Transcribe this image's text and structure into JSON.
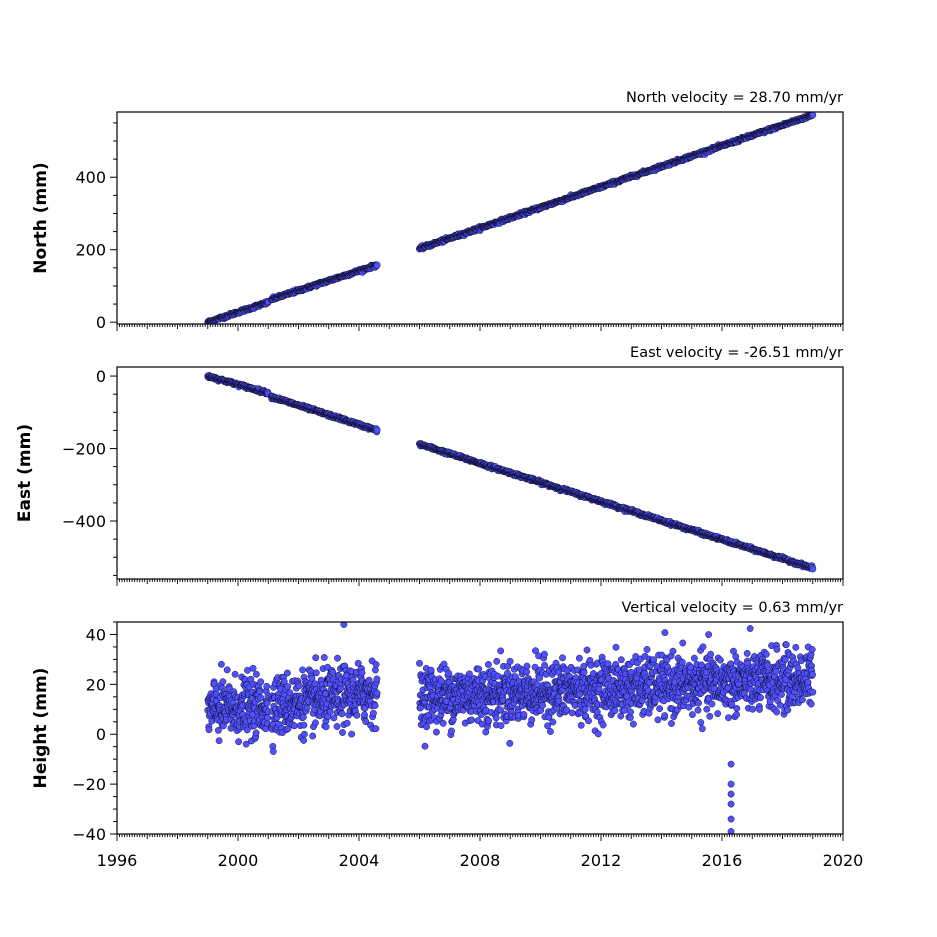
{
  "chart_data": [
    {
      "type": "scatter",
      "title": "North velocity = 28.70 mm/yr",
      "ylabel": "North (mm)",
      "xlim": [
        1996,
        2020
      ],
      "ylim": [
        -5,
        580
      ],
      "yticks": [
        0,
        200,
        400
      ],
      "grid": false,
      "segments": [
        {
          "x0": 1999.0,
          "x1": 2001.0,
          "y0": 0,
          "y1": 55
        },
        {
          "x0": 2001.1,
          "x1": 2004.6,
          "y0": 63,
          "y1": 158
        },
        {
          "x0": 2006.0,
          "x1": 2019.0,
          "y0": 203,
          "y1": 572
        }
      ],
      "noise": 2
    },
    {
      "type": "scatter",
      "title": "East velocity = -26.51 mm/yr",
      "ylabel": "East (mm)",
      "xlim": [
        1996,
        2020
      ],
      "ylim": [
        -560,
        25
      ],
      "yticks": [
        0,
        -200,
        -400
      ],
      "grid": false,
      "segments": [
        {
          "x0": 1999.0,
          "x1": 2001.0,
          "y0": 0,
          "y1": -47
        },
        {
          "x0": 2001.1,
          "x1": 2004.6,
          "y0": -57,
          "y1": -150
        },
        {
          "x0": 2006.0,
          "x1": 2019.0,
          "y0": -188,
          "y1": -530
        }
      ],
      "noise": 2
    },
    {
      "type": "scatter",
      "title": "Vertical velocity = 0.63 mm/yr",
      "ylabel": "Height (mm)",
      "xlabel": "",
      "xlim": [
        1996,
        2020
      ],
      "ylim": [
        -40,
        45
      ],
      "yticks": [
        -40,
        -20,
        0,
        20,
        40
      ],
      "xticks": [
        1996,
        2000,
        2004,
        2008,
        2012,
        2016,
        2020
      ],
      "grid": false,
      "segments": [
        {
          "x0": 1999.0,
          "x1": 2001.0,
          "y0": 10,
          "y1": 11
        },
        {
          "x0": 2001.1,
          "x1": 2004.6,
          "y0": 11,
          "y1": 17
        },
        {
          "x0": 2006.0,
          "x1": 2019.0,
          "y0": 15,
          "y1": 22
        }
      ],
      "noise": 6,
      "outliers": [
        {
          "x": 2003.5,
          "y": 44
        },
        {
          "x": 2016.3,
          "y": -12
        },
        {
          "x": 2016.3,
          "y": -20
        },
        {
          "x": 2016.3,
          "y": -24
        },
        {
          "x": 2016.3,
          "y": -28
        },
        {
          "x": 2016.3,
          "y": -34
        },
        {
          "x": 2016.3,
          "y": -39
        }
      ]
    }
  ],
  "colors": {
    "marker_fill": "#5050ff",
    "marker_edge": "#000000",
    "axes": "#000000",
    "background": "#ffffff"
  }
}
